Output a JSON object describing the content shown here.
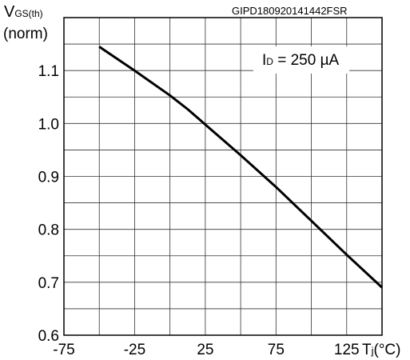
{
  "chart_data": {
    "type": "line",
    "id_label": "GIPD180920141442FSR",
    "ylabel": {
      "main": "V",
      "sub": "GS(th)",
      "unit": "(norm)"
    },
    "xlabel": {
      "main": "T",
      "sub": "j",
      "unit": "(°C)"
    },
    "annotation": {
      "main": "I",
      "sub": "D",
      "rest": " = 250 µA"
    },
    "xlim": [
      -75,
      150
    ],
    "ylim": [
      0.6,
      1.2
    ],
    "x_ticks": [
      {
        "value": -75,
        "label": "-75"
      },
      {
        "value": -25,
        "label": "-25"
      },
      {
        "value": 25,
        "label": "25"
      },
      {
        "value": 75,
        "label": "75"
      },
      {
        "value": 125,
        "label": "125"
      }
    ],
    "y_ticks": [
      {
        "value": 0.6,
        "label": "0.6"
      },
      {
        "value": 0.7,
        "label": "0.7"
      },
      {
        "value": 0.8,
        "label": "0.8"
      },
      {
        "value": 0.9,
        "label": "0.9"
      },
      {
        "value": 1.0,
        "label": "1.0"
      },
      {
        "value": 1.1,
        "label": "1.1"
      }
    ],
    "x_grid": [
      -50,
      -25,
      0,
      25,
      50,
      75,
      100,
      125
    ],
    "y_grid": [
      0.65,
      0.7,
      0.75,
      0.8,
      0.85,
      0.9,
      0.95,
      1.0,
      1.05,
      1.1,
      1.15
    ],
    "grid": true,
    "series": [
      {
        "x": [
          -50,
          -25,
          0,
          12.5,
          25,
          50,
          75,
          100,
          125,
          150
        ],
        "y": [
          1.145,
          1.1,
          1.053,
          1.027,
          0.998,
          0.94,
          0.88,
          0.816,
          0.752,
          0.69
        ]
      }
    ]
  }
}
